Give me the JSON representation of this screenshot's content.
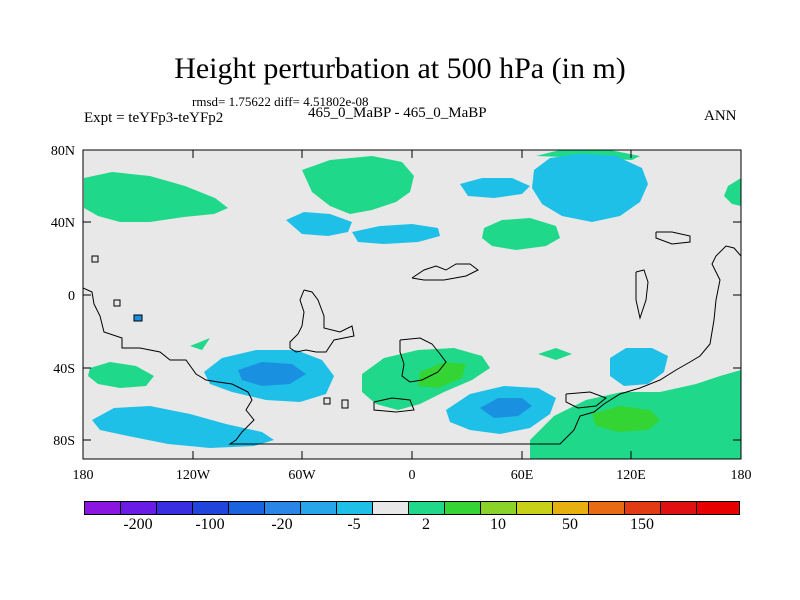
{
  "title": "Height perturbation at 500 hPa (in m)",
  "stats": "rmsd= 1.75622 diff= 4.51802e-08",
  "expt": "Expt = teYFp3-teYFp2",
  "period": "465_0_MaBP - 465_0_MaBP",
  "season": "ANN",
  "axes": {
    "lat_ticks": [
      "80N",
      "40N",
      "0",
      "40S",
      "80S"
    ],
    "lon_ticks": [
      "180",
      "120W",
      "60W",
      "0",
      "60E",
      "120E",
      "180"
    ]
  },
  "colorbar": {
    "colors": [
      "#8a16e0",
      "#6a1be6",
      "#3a2fe0",
      "#1f45dc",
      "#1a64e0",
      "#2a86e6",
      "#27a6ea",
      "#1fc0e8",
      "#e8e8e8",
      "#20d88a",
      "#33d433",
      "#8ad42a",
      "#c8d018",
      "#e6b00f",
      "#e86a12",
      "#e23a12",
      "#e01010",
      "#e60000"
    ],
    "labels": [
      "-200",
      "-100",
      "-20",
      "-5",
      "2",
      "10",
      "50",
      "150"
    ]
  },
  "map_colors": {
    "background": "#e8e8e8",
    "green": "#20d88a",
    "cyan": "#1fc0e8",
    "blue": "#1a90e0",
    "lime": "#33d433"
  }
}
